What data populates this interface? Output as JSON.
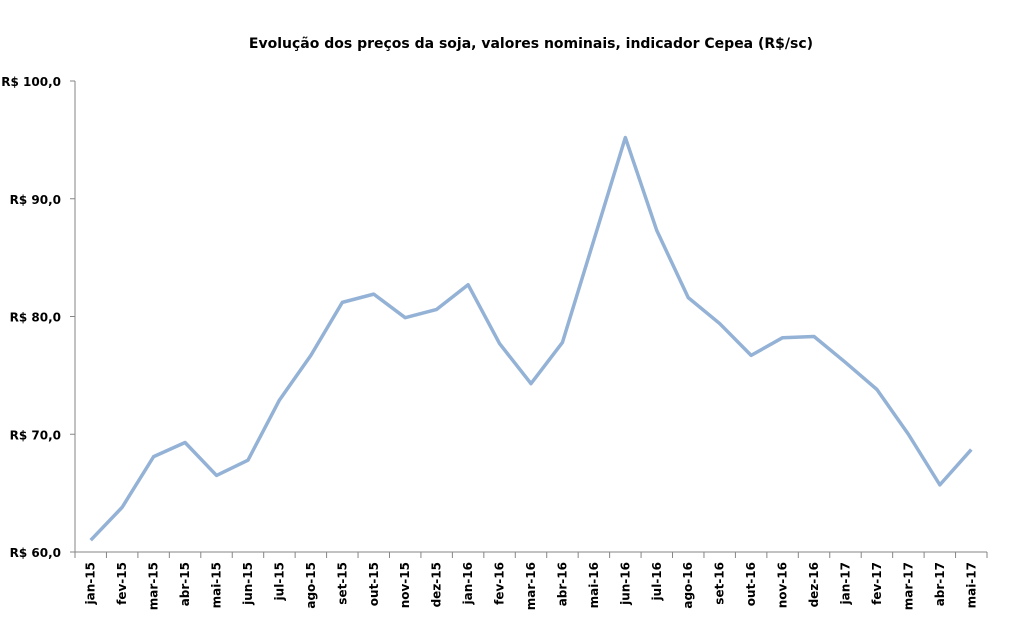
{
  "chart_data": {
    "type": "line",
    "title": "Evolução dos preços da soja, valores nominais, indicador Cepea (R$/sc)",
    "xlabel": "",
    "ylabel": "",
    "ylim": [
      60,
      100
    ],
    "yticks": [
      60,
      70,
      80,
      90,
      100
    ],
    "ytick_labels": [
      "R$ 60,0",
      "R$ 70,0",
      "R$ 80,0",
      "R$ 90,0",
      "R$ 100,0"
    ],
    "grid": false,
    "legend": "none",
    "color": "#94b2d6",
    "categories": [
      "jan-15",
      "fev-15",
      "mar-15",
      "abr-15",
      "mai-15",
      "jun-15",
      "jul-15",
      "ago-15",
      "set-15",
      "out-15",
      "nov-15",
      "dez-15",
      "jan-16",
      "fev-16",
      "mar-16",
      "abr-16",
      "mai-16",
      "jun-16",
      "jul-16",
      "ago-16",
      "set-16",
      "out-16",
      "nov-16",
      "dez-16",
      "jan-17",
      "fev-17",
      "mar-17",
      "abr-17",
      "mai-17"
    ],
    "values": [
      61.0,
      63.8,
      68.1,
      69.3,
      66.5,
      67.8,
      72.9,
      76.7,
      81.2,
      81.9,
      79.9,
      80.6,
      82.7,
      77.7,
      74.3,
      77.8,
      86.5,
      95.2,
      87.3,
      81.6,
      79.4,
      76.7,
      78.2,
      78.3,
      76.1,
      73.8,
      70.0,
      65.7,
      68.7
    ]
  }
}
